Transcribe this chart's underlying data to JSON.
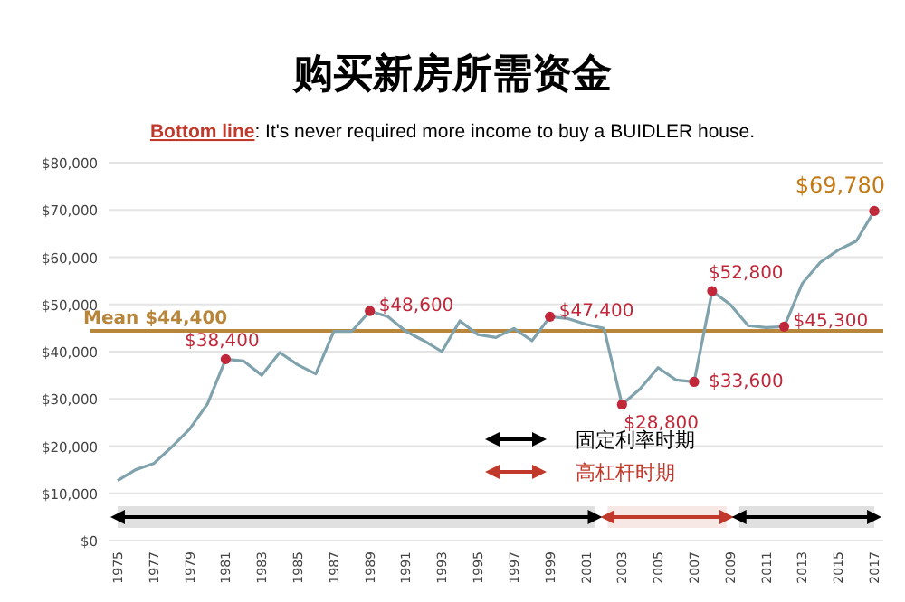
{
  "chart_data": {
    "type": "line",
    "title": "购买新房所需资金",
    "subtitle": "**Bottom line**: It's never required more income to buy a BUIDLER house.",
    "x": [
      1975,
      1976,
      1977,
      1978,
      1979,
      1980,
      1981,
      1982,
      1983,
      1984,
      1985,
      1986,
      1987,
      1988,
      1989,
      1990,
      1991,
      1992,
      1993,
      1994,
      1995,
      1996,
      1997,
      1998,
      1999,
      2000,
      2001,
      2002,
      2003,
      2004,
      2005,
      2006,
      2007,
      2008,
      2009,
      2010,
      2011,
      2012,
      2013,
      2014,
      2015,
      2016,
      2017
    ],
    "series": [
      {
        "color": "#7fa2ad",
        "values": [
          12700,
          15000,
          16300,
          19800,
          23600,
          29000,
          38400,
          38000,
          35000,
          39800,
          37200,
          35300,
          44300,
          44300,
          48600,
          47400,
          44300,
          42300,
          40000,
          46500,
          43600,
          43000,
          44900,
          42300,
          47400,
          47000,
          45800,
          44900,
          28800,
          32100,
          36600,
          34000,
          33600,
          52800,
          50000,
          45500,
          45100,
          45300,
          54400,
          58900,
          61500,
          63400,
          69780
        ],
        "value_labels": [
          null,
          null,
          null,
          null,
          null,
          null,
          "$38,400",
          null,
          null,
          null,
          null,
          null,
          null,
          null,
          "$48,600",
          null,
          null,
          null,
          null,
          null,
          null,
          null,
          null,
          null,
          "$47,400",
          null,
          null,
          null,
          "$28,800",
          null,
          null,
          null,
          "$33,600",
          "$52,800",
          null,
          null,
          null,
          "$45,300",
          null,
          null,
          null,
          null,
          "$69,780"
        ]
      }
    ],
    "xlim": [
      1974.5,
      2017.5
    ],
    "xticks": [
      1975,
      1977,
      1979,
      1981,
      1983,
      1985,
      1987,
      1989,
      1991,
      1993,
      1995,
      1997,
      1999,
      2001,
      2003,
      2005,
      2007,
      2009,
      2011,
      2013,
      2015,
      2017
    ],
    "ylim": [
      0,
      80000
    ],
    "yticks": [
      {
        "value": 0,
        "label": "$0"
      },
      {
        "value": 10000,
        "label": "$10,000"
      },
      {
        "value": 20000,
        "label": "$20,000"
      },
      {
        "value": 30000,
        "label": "$30,000"
      },
      {
        "value": 40000,
        "label": "$40,000"
      },
      {
        "value": 50000,
        "label": "$50,000"
      },
      {
        "value": 60000,
        "label": "$60,000"
      },
      {
        "value": 70000,
        "label": "$70,000"
      },
      {
        "value": 80000,
        "label": "$80,000"
      }
    ],
    "grid": "y",
    "legend": "bottom right",
    "ref_lines": [
      {
        "axis": "y",
        "value": 44400,
        "label": "Mean $44,400",
        "color": "#b8863b"
      }
    ],
    "bands": [
      {
        "axis": "x",
        "from": 1975,
        "to": 2001.5,
        "label": "固定利率时期",
        "color": "#000000"
      },
      {
        "axis": "x",
        "from": 2002.2,
        "to": 2008.8,
        "label": "高杠杆时期",
        "color": "#c0392b"
      },
      {
        "axis": "x",
        "from": 2009.5,
        "to": 2017,
        "color": "#000000"
      }
    ]
  }
}
